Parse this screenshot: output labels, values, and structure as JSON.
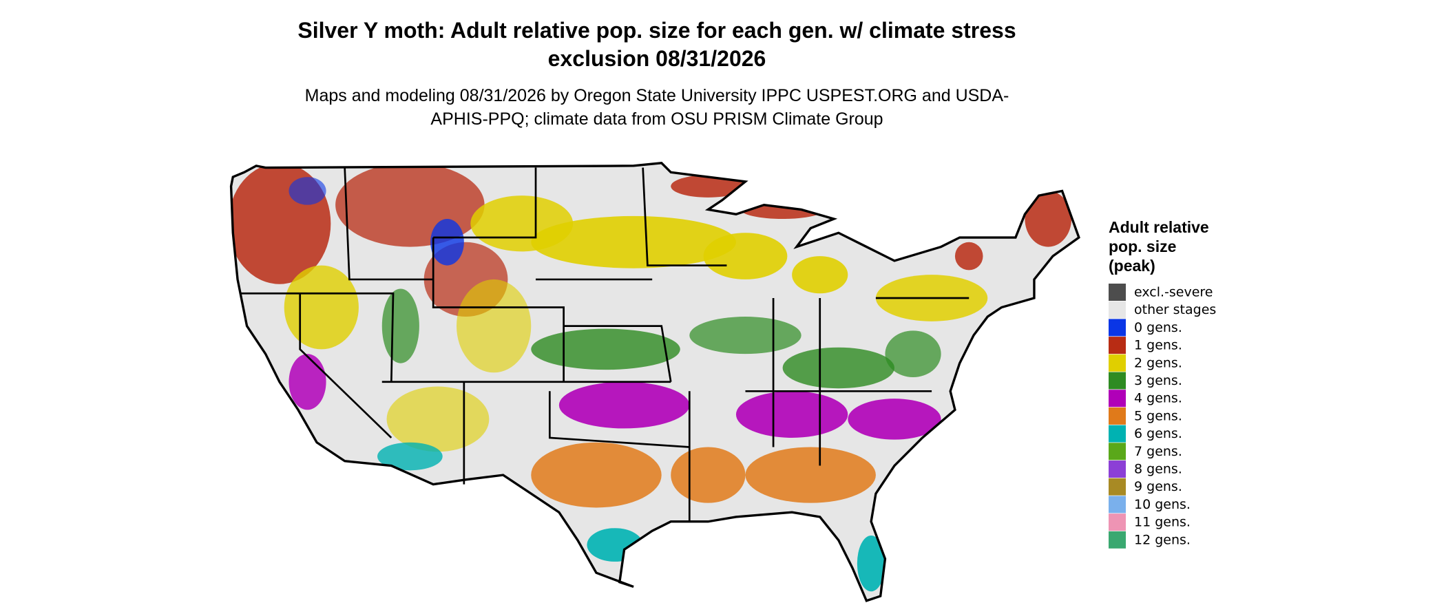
{
  "title": "Silver Y moth: Adult relative pop. size for each gen. w/ climate stress exclusion 08/31/2026",
  "subtitle": "Maps and modeling 08/31/2026 by Oregon State University IPPC USPEST.ORG and USDA-APHIS-PPQ; climate data from OSU PRISM Climate Group",
  "legend": {
    "title": "Adult relative pop. size (peak)",
    "items": [
      {
        "label": "excl.-severe",
        "color": "#4d4d4d"
      },
      {
        "label": "other stages",
        "color": "#e6e6e6"
      },
      {
        "label": "0 gens.",
        "color": "#0a36e6"
      },
      {
        "label": "1 gens.",
        "color": "#b82c14"
      },
      {
        "label": "2 gens.",
        "color": "#e0cf00"
      },
      {
        "label": "3 gens.",
        "color": "#2e8b22"
      },
      {
        "label": "4 gens.",
        "color": "#b000b8"
      },
      {
        "label": "5 gens.",
        "color": "#e07a1a"
      },
      {
        "label": "6 gens.",
        "color": "#00b2b2"
      },
      {
        "label": "7 gens.",
        "color": "#5aa81a"
      },
      {
        "label": "8 gens.",
        "color": "#8c3fd6"
      },
      {
        "label": "9 gens.",
        "color": "#a88a24"
      },
      {
        "label": "10 gens.",
        "color": "#7ab0ec"
      },
      {
        "label": "11 gens.",
        "color": "#ee94b4"
      },
      {
        "label": "12 gens.",
        "color": "#3aa870"
      }
    ]
  }
}
